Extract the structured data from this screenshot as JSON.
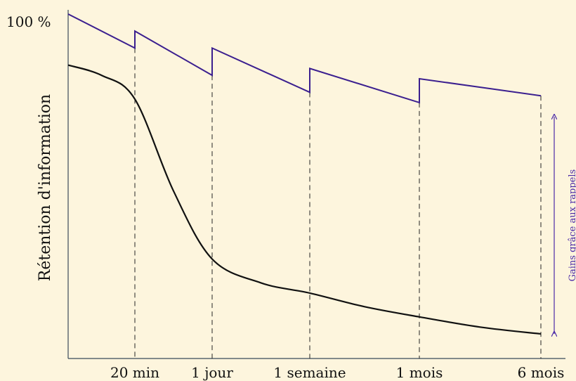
{
  "colors": {
    "background": "#fdf5dd",
    "review_curve": "#3b1f8f",
    "forgetting_curve": "#111111",
    "axis": "#3a4a5a",
    "annotation": "#4b2aa8"
  },
  "chart_data": {
    "type": "line",
    "title": "",
    "ylabel": "Rétention d'information",
    "y_top_label": "100 %",
    "xlabel": "",
    "grid": false,
    "ylim": [
      0,
      100
    ],
    "x_ticks": [
      {
        "label": "20 min",
        "x": 1
      },
      {
        "label": "1 jour",
        "x": 2
      },
      {
        "label": "1 semaine",
        "x": 3
      },
      {
        "label": "1 mois",
        "x": 4
      },
      {
        "label": "6 mois",
        "x": 5
      }
    ],
    "series": [
      {
        "style": "sawtooth",
        "color": "#3b1f8f",
        "values": [
          [
            0,
            100
          ],
          [
            1,
            90
          ],
          [
            1,
            95
          ],
          [
            2,
            82
          ],
          [
            2,
            90
          ],
          [
            3,
            77
          ],
          [
            3,
            84
          ],
          [
            4,
            74
          ],
          [
            4,
            81
          ],
          [
            5,
            76
          ]
        ]
      },
      {
        "style": "curve",
        "color": "#111111",
        "values": [
          [
            0,
            85
          ],
          [
            0.5,
            82
          ],
          [
            1,
            75
          ],
          [
            1.5,
            48
          ],
          [
            2,
            28
          ],
          [
            2.5,
            21
          ],
          [
            3,
            18
          ],
          [
            3.5,
            14
          ],
          [
            4,
            11
          ],
          [
            4.5,
            8
          ],
          [
            5,
            6
          ]
        ]
      }
    ],
    "annotation": {
      "text": "Gains grâce aux rappels",
      "range_y": [
        6,
        76
      ]
    }
  }
}
